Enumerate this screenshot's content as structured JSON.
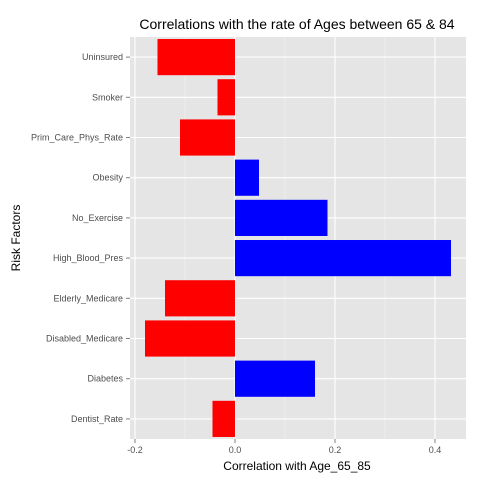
{
  "chart_data": {
    "type": "bar",
    "orientation": "horizontal",
    "title": "Correlations with the rate of Ages between 65 & 84",
    "xlabel": "Correlation with Age_65_85",
    "ylabel": "Risk Factors",
    "categories": [
      "Uninsured",
      "Smoker",
      "Prim_Care_Phys_Rate",
      "Obesity",
      "No_Exercise",
      "High_Blood_Pres",
      "Elderly_Medicare",
      "Disabled_Medicare",
      "Diabetes",
      "Dentist_Rate"
    ],
    "values": [
      -0.155,
      -0.035,
      -0.11,
      0.048,
      0.185,
      0.432,
      -0.14,
      -0.18,
      0.16,
      -0.045
    ],
    "xlim": [
      -0.21,
      0.462
    ],
    "xticks": [
      -0.2,
      0.0,
      0.2,
      0.4
    ],
    "xtick_labels": [
      "-0.2",
      "0.0",
      "0.2",
      "0.4"
    ],
    "positive_color": "#0000ff",
    "negative_color": "#ff0000",
    "panel_background": "#e5e5e5",
    "grid": true,
    "legend": "none"
  }
}
